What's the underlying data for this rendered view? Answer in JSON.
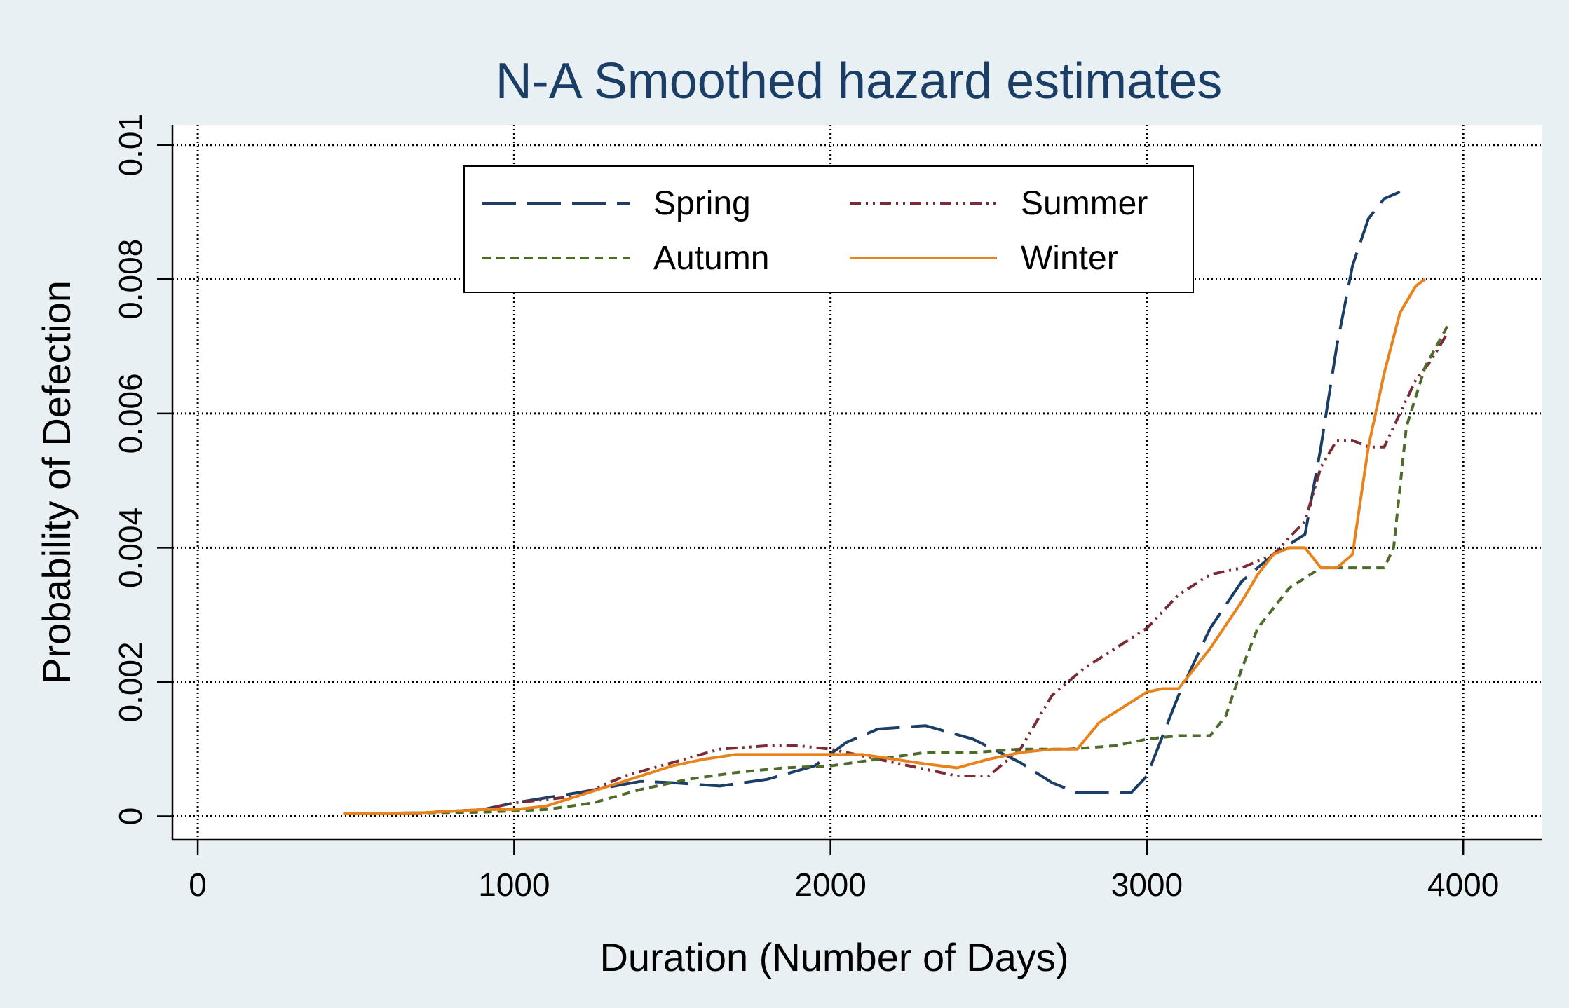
{
  "chart_data": {
    "type": "line",
    "title": "N-A Smoothed hazard estimates",
    "xlabel": "Duration (Number of Days)",
    "ylabel": "Probability of Defection",
    "xlim": [
      -80,
      4250
    ],
    "ylim": [
      -0.00035,
      0.0103
    ],
    "x_ticks": [
      0,
      1000,
      2000,
      3000,
      4000
    ],
    "x_tick_labels": [
      "0",
      "1000",
      "2000",
      "3000",
      "4000"
    ],
    "y_ticks": [
      0,
      0.002,
      0.004,
      0.006,
      0.008,
      0.01
    ],
    "y_tick_labels": [
      "0",
      "0.002",
      "0.004",
      "0.006",
      "0.008",
      "0.01"
    ],
    "grid": true,
    "legend_position": "top-center",
    "colors": {
      "background": "#e9f0f3",
      "plot_background": "#ffffff",
      "axis": "#000000",
      "grid": "#000000"
    },
    "series": [
      {
        "name": "Spring",
        "color": "#1a3e66",
        "dash": "long-dash",
        "x": [
          460,
          700,
          900,
          1000,
          1200,
          1400,
          1500,
          1650,
          1800,
          1950,
          2050,
          2150,
          2300,
          2450,
          2600,
          2700,
          2780,
          2850,
          2950,
          3000,
          3100,
          3200,
          3300,
          3400,
          3500,
          3550,
          3600,
          3650,
          3700,
          3750,
          3800
        ],
        "y": [
          4e-05,
          5e-05,
          0.0001,
          0.0002,
          0.00035,
          0.00052,
          0.0005,
          0.00045,
          0.00055,
          0.00075,
          0.0011,
          0.0013,
          0.00135,
          0.00115,
          0.0008,
          0.0005,
          0.00035,
          0.00035,
          0.00035,
          0.0006,
          0.0018,
          0.0028,
          0.0035,
          0.0039,
          0.0042,
          0.0055,
          0.007,
          0.0082,
          0.0089,
          0.0092,
          0.0093
        ]
      },
      {
        "name": "Summer",
        "color": "#7b2b35",
        "dash": "dash-dot-dot",
        "x": [
          460,
          700,
          900,
          1000,
          1200,
          1350,
          1500,
          1650,
          1800,
          1900,
          2000,
          2100,
          2200,
          2300,
          2400,
          2500,
          2600,
          2700,
          2800,
          2900,
          3000,
          3100,
          3200,
          3300,
          3400,
          3500,
          3550,
          3600,
          3650,
          3700,
          3750,
          3800,
          3850,
          3900,
          3950
        ],
        "y": [
          4e-05,
          5e-05,
          0.0001,
          0.0002,
          0.0003,
          0.0006,
          0.0008,
          0.001,
          0.00105,
          0.00105,
          0.001,
          0.0009,
          0.0008,
          0.0007,
          0.0006,
          0.0006,
          0.001,
          0.0018,
          0.0022,
          0.0025,
          0.0028,
          0.0033,
          0.0036,
          0.0037,
          0.0039,
          0.0044,
          0.0052,
          0.0056,
          0.0056,
          0.0055,
          0.0055,
          0.006,
          0.0065,
          0.0068,
          0.0072
        ]
      },
      {
        "name": "Autumn",
        "color": "#4e6b2c",
        "dash": "short-dash",
        "x": [
          460,
          700,
          900,
          1100,
          1250,
          1400,
          1550,
          1700,
          1850,
          2000,
          2150,
          2300,
          2450,
          2600,
          2750,
          2900,
          3000,
          3100,
          3200,
          3250,
          3300,
          3350,
          3450,
          3550,
          3650,
          3700,
          3750,
          3780,
          3820,
          3880,
          3950
        ],
        "y": [
          4e-05,
          5e-05,
          6e-05,
          0.0001,
          0.0002,
          0.0004,
          0.00055,
          0.00065,
          0.00072,
          0.00075,
          0.00085,
          0.00095,
          0.00095,
          0.001,
          0.001,
          0.00105,
          0.00115,
          0.0012,
          0.0012,
          0.0015,
          0.0022,
          0.0028,
          0.0034,
          0.0037,
          0.0037,
          0.0037,
          0.0037,
          0.004,
          0.0058,
          0.0067,
          0.0073
        ]
      },
      {
        "name": "Winter",
        "color": "#e8821c",
        "dash": "solid",
        "x": [
          460,
          700,
          900,
          1000,
          1100,
          1200,
          1300,
          1400,
          1500,
          1600,
          1700,
          1800,
          1900,
          2000,
          2100,
          2200,
          2300,
          2400,
          2500,
          2600,
          2700,
          2780,
          2850,
          2950,
          3000,
          3050,
          3100,
          3200,
          3300,
          3350,
          3400,
          3450,
          3500,
          3550,
          3600,
          3650,
          3700,
          3750,
          3800,
          3850,
          3880
        ],
        "y": [
          4e-05,
          5e-05,
          0.0001,
          0.0001,
          0.00015,
          0.0003,
          0.00045,
          0.0006,
          0.00075,
          0.00085,
          0.00092,
          0.00092,
          0.00092,
          0.00092,
          0.00092,
          0.00085,
          0.00078,
          0.00072,
          0.00085,
          0.00095,
          0.001,
          0.001,
          0.0014,
          0.0017,
          0.00185,
          0.0019,
          0.0019,
          0.0025,
          0.0032,
          0.0036,
          0.0039,
          0.004,
          0.004,
          0.0037,
          0.0037,
          0.0039,
          0.0055,
          0.0066,
          0.0075,
          0.0079,
          0.008
        ]
      }
    ]
  }
}
